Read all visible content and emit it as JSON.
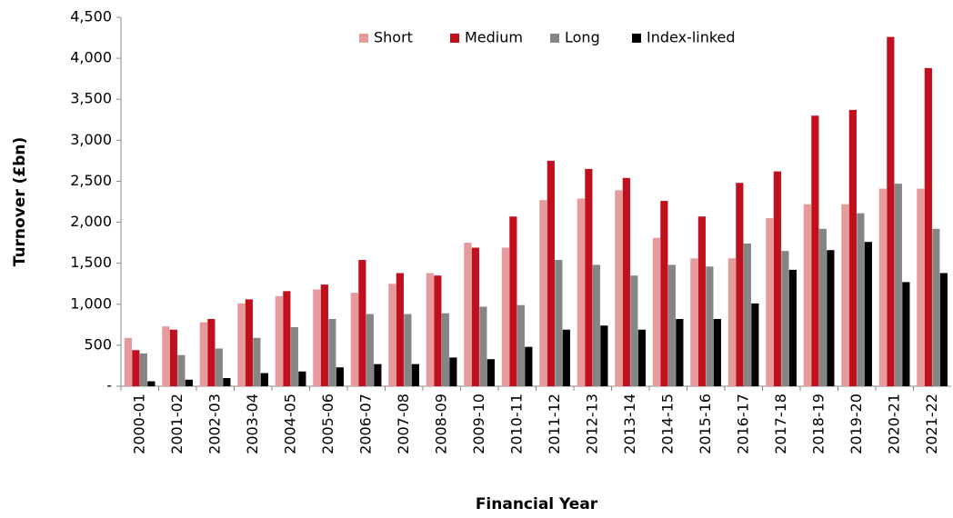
{
  "chart_data": {
    "type": "bar",
    "x_label": "Financial Year",
    "y_label": "Turnover (£bn)",
    "categories": [
      "2000-01",
      "2001-02",
      "2002-03",
      "2003-04",
      "2004-05",
      "2005-06",
      "2006-07",
      "2007-08",
      "2008-09",
      "2009-10",
      "2010-11",
      "2011-12",
      "2012-13",
      "2013-14",
      "2014-15",
      "2015-16",
      "2016-17",
      "2017-18",
      "2018-19",
      "2019-20",
      "2020-21",
      "2021-22"
    ],
    "series": [
      {
        "name": "Short",
        "color": "#e59a9c",
        "values": [
          590,
          730,
          780,
          1010,
          1100,
          1180,
          1140,
          1250,
          1380,
          1750,
          1690,
          2270,
          2290,
          2390,
          1810,
          1560,
          1560,
          2050,
          2220,
          2220,
          2410,
          2410
        ]
      },
      {
        "name": "Medium",
        "color": "#c0101e",
        "values": [
          440,
          690,
          820,
          1060,
          1160,
          1240,
          1540,
          1380,
          1350,
          1690,
          2070,
          2750,
          2650,
          2540,
          2260,
          2070,
          2480,
          2620,
          3300,
          3370,
          4260,
          3880
        ]
      },
      {
        "name": "Long",
        "color": "#858585",
        "values": [
          400,
          380,
          460,
          590,
          720,
          820,
          880,
          880,
          890,
          970,
          990,
          1540,
          1480,
          1350,
          1480,
          1460,
          1740,
          1650,
          1920,
          2110,
          2470,
          1920
        ]
      },
      {
        "name": "Index-linked",
        "color": "#000000",
        "values": [
          60,
          80,
          100,
          160,
          180,
          230,
          270,
          270,
          350,
          330,
          480,
          690,
          740,
          690,
          820,
          820,
          1010,
          1420,
          1660,
          1760,
          1270,
          1380
        ]
      }
    ],
    "ylim": [
      0,
      4500
    ],
    "yticks": [
      {
        "value": 0,
        "label": "-"
      },
      500,
      {
        "value": 1000,
        "label": "1,000"
      },
      {
        "value": 1500,
        "label": "1,500"
      },
      {
        "value": 2000,
        "label": "2,000"
      },
      {
        "value": 2500,
        "label": "2,500"
      },
      {
        "value": 3000,
        "label": "3,000"
      },
      {
        "value": 3500,
        "label": "3,500"
      },
      {
        "value": 4000,
        "label": "4,000"
      },
      {
        "value": 4500,
        "label": "4,500"
      }
    ],
    "grid": false,
    "legend": "upper center"
  }
}
